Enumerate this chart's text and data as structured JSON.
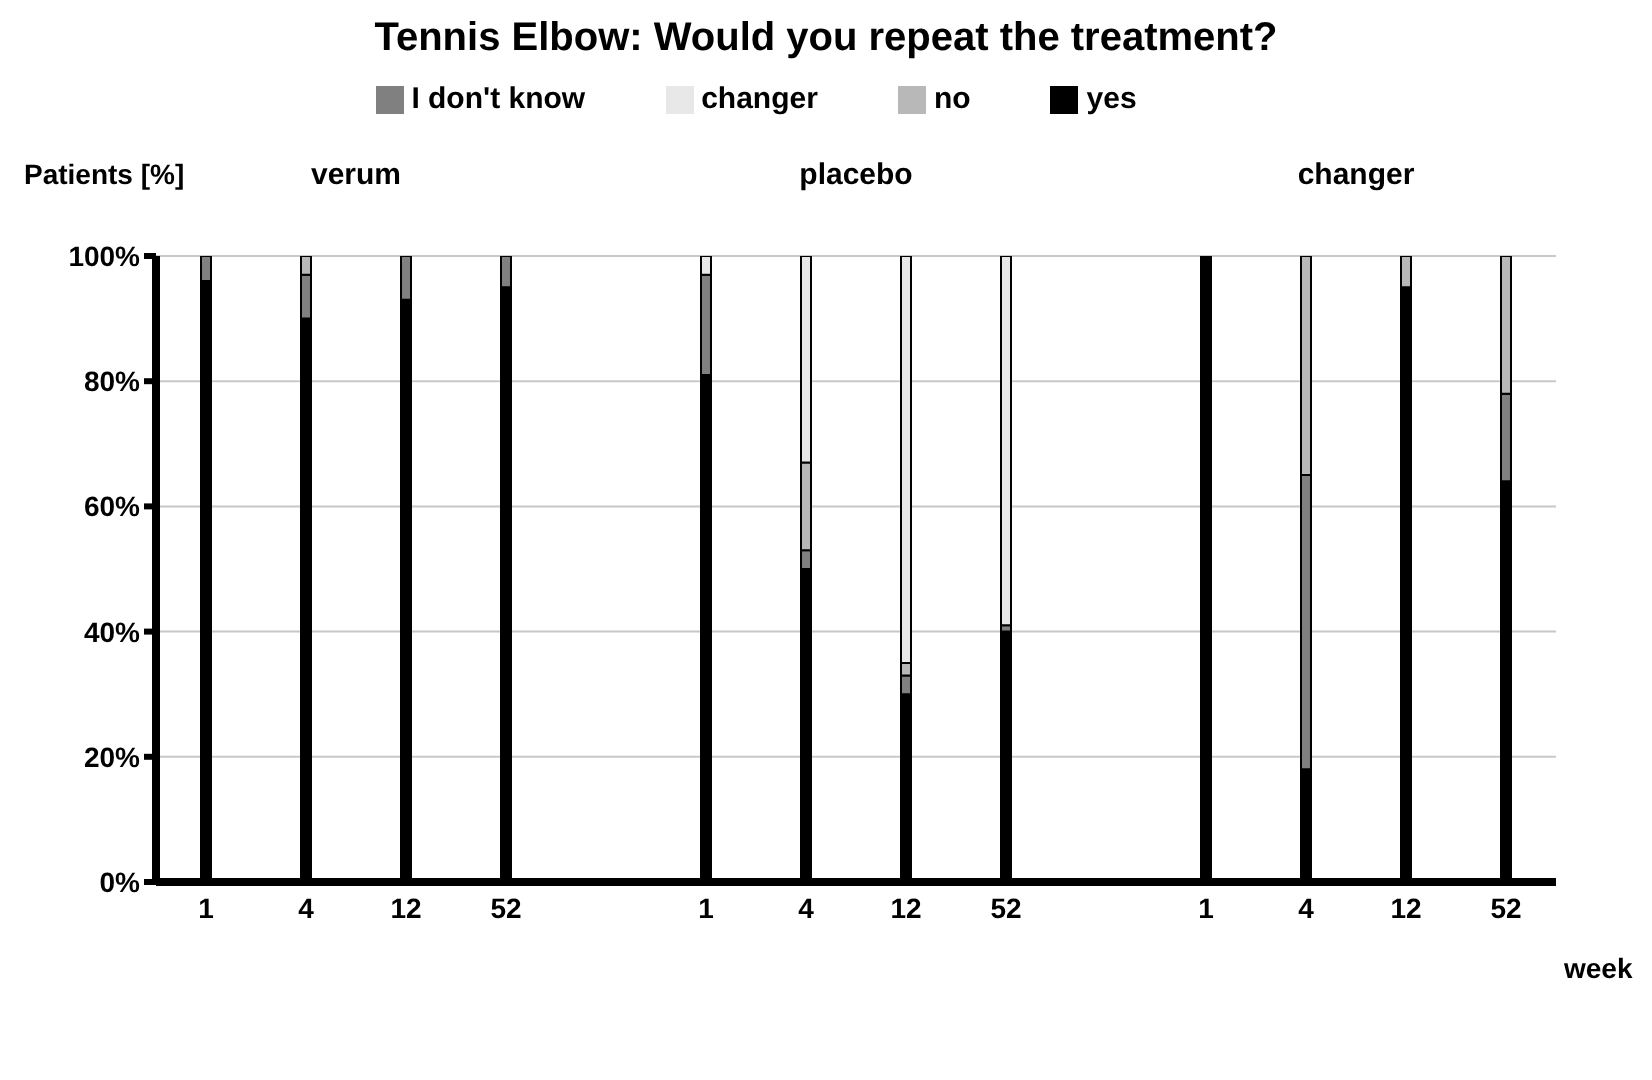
{
  "chart_data": {
    "type": "bar",
    "title": "Tennis Elbow: Would you repeat the treatment?",
    "ylabel": "Patients [%]",
    "xlabel": "week",
    "categories": [
      "1",
      "4",
      "12",
      "52",
      null,
      "1",
      "4",
      "12",
      "52",
      null,
      "1",
      "4",
      "12",
      "52"
    ],
    "stacked": true,
    "series": [
      {
        "name": "yes",
        "color": "#000000",
        "values": [
          96,
          90,
          93,
          95,
          null,
          81,
          50,
          30,
          40,
          null,
          100,
          18,
          95,
          64
        ]
      },
      {
        "name": "I don't know",
        "color": "#808080",
        "values": [
          4,
          7,
          7,
          5,
          null,
          16,
          3,
          3,
          1,
          null,
          0,
          47,
          0,
          14
        ]
      },
      {
        "name": "no",
        "color": "#b8b8b8",
        "values": [
          0,
          3,
          0,
          0,
          null,
          0,
          14,
          2,
          0,
          null,
          0,
          35,
          5,
          22
        ]
      },
      {
        "name": "changer",
        "color": "#e8e8e8",
        "values": [
          0,
          0,
          0,
          0,
          null,
          3,
          33,
          65,
          59,
          null,
          0,
          0,
          0,
          0
        ]
      }
    ],
    "annotations": [
      "verum",
      "placebo",
      "changer"
    ],
    "ylim": [
      0,
      100
    ],
    "yticks": [
      {
        "value": 0,
        "label": "0%"
      },
      {
        "value": 20,
        "label": "20%"
      },
      {
        "value": 40,
        "label": "40%"
      },
      {
        "value": 60,
        "label": "60%"
      },
      {
        "value": 80,
        "label": "80%"
      },
      {
        "value": 100,
        "label": "100%"
      }
    ],
    "grid": "y",
    "legend": "top"
  }
}
